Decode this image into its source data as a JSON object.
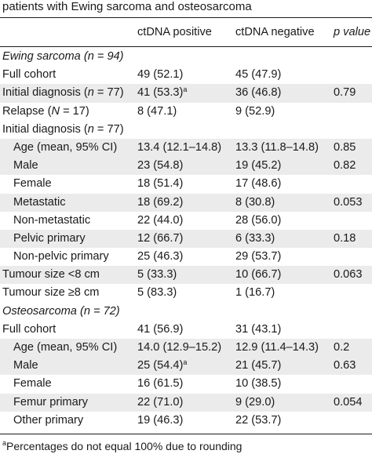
{
  "caption": "patients with Ewing sarcoma and osteosarcoma",
  "header": {
    "col1": "",
    "col2": "ctDNA positive",
    "col3": "ctDNA negative",
    "col4": "p value"
  },
  "rows": [
    {
      "label_pre": "Ewing sarcoma (",
      "label_var": "n",
      "label_post": " = 94)",
      "pos": "",
      "pos_sup": "",
      "neg": "",
      "p": ""
    },
    {
      "label_pre": "Full cohort",
      "label_var": "",
      "label_post": "",
      "pos": "49 (52.1)",
      "pos_sup": "",
      "neg": "45 (47.9)",
      "p": ""
    },
    {
      "label_pre": "Initial diagnosis (",
      "label_var": "n",
      "label_post": " = 77)",
      "pos": "41 (53.3)",
      "pos_sup": "a",
      "neg": "36 (46.8)",
      "p": "0.79"
    },
    {
      "label_pre": "Relapse (",
      "label_var": "N",
      "label_post": " = 17)",
      "pos": "8 (47.1)",
      "pos_sup": "",
      "neg": "9 (52.9)",
      "p": ""
    },
    {
      "label_pre": "Initial diagnosis (",
      "label_var": "n",
      "label_post": " = 77)",
      "pos": "",
      "pos_sup": "",
      "neg": "",
      "p": ""
    },
    {
      "label_pre": "Age (mean, 95% CI)",
      "label_var": "",
      "label_post": "",
      "pos": "13.4 (12.1–14.8)",
      "pos_sup": "",
      "neg": "13.3 (11.8–14.8)",
      "p": "0.85"
    },
    {
      "label_pre": "Male",
      "label_var": "",
      "label_post": "",
      "pos": "23 (54.8)",
      "pos_sup": "",
      "neg": "19 (45.2)",
      "p": "0.82"
    },
    {
      "label_pre": "Female",
      "label_var": "",
      "label_post": "",
      "pos": "18 (51.4)",
      "pos_sup": "",
      "neg": "17 (48.6)",
      "p": ""
    },
    {
      "label_pre": "Metastatic",
      "label_var": "",
      "label_post": "",
      "pos": "18 (69.2)",
      "pos_sup": "",
      "neg": "8 (30.8)",
      "p": "0.053"
    },
    {
      "label_pre": "Non-metastatic",
      "label_var": "",
      "label_post": "",
      "pos": "22 (44.0)",
      "pos_sup": "",
      "neg": "28 (56.0)",
      "p": ""
    },
    {
      "label_pre": "Pelvic primary",
      "label_var": "",
      "label_post": "",
      "pos": "12 (66.7)",
      "pos_sup": "",
      "neg": "6 (33.3)",
      "p": "0.18"
    },
    {
      "label_pre": "Non-pelvic primary",
      "label_var": "",
      "label_post": "",
      "pos": "25 (46.3)",
      "pos_sup": "",
      "neg": "29 (53.7)",
      "p": ""
    },
    {
      "label_pre": "Tumour size <8 cm",
      "label_var": "",
      "label_post": "",
      "pos": "5 (33.3)",
      "pos_sup": "",
      "neg": "10 (66.7)",
      "p": "0.063"
    },
    {
      "label_pre": "Tumour size ≥8 cm",
      "label_var": "",
      "label_post": "",
      "pos": "5 (83.3)",
      "pos_sup": "",
      "neg": "1 (16.7)",
      "p": ""
    },
    {
      "label_pre": "Osteosarcoma (",
      "label_var": "n",
      "label_post": " = 72)",
      "pos": "",
      "pos_sup": "",
      "neg": "",
      "p": ""
    },
    {
      "label_pre": "Full cohort",
      "label_var": "",
      "label_post": "",
      "pos": "41 (56.9)",
      "pos_sup": "",
      "neg": "31 (43.1)",
      "p": ""
    },
    {
      "label_pre": "Age (mean, 95% CI)",
      "label_var": "",
      "label_post": "",
      "pos": "14.0 (12.9–15.2)",
      "pos_sup": "",
      "neg": "12.9 (11.4–14.3)",
      "p": "0.2"
    },
    {
      "label_pre": "Male",
      "label_var": "",
      "label_post": "",
      "pos": "25 (54.4)",
      "pos_sup": "a",
      "neg": "21 (45.7)",
      "p": "0.63"
    },
    {
      "label_pre": "Female",
      "label_var": "",
      "label_post": "",
      "pos": "16 (61.5)",
      "pos_sup": "",
      "neg": "10 (38.5)",
      "p": ""
    },
    {
      "label_pre": "Femur primary",
      "label_var": "",
      "label_post": "",
      "pos": "22 (71.0)",
      "pos_sup": "",
      "neg": "9 (29.0)",
      "p": "0.054"
    },
    {
      "label_pre": "Other primary",
      "label_var": "",
      "label_post": "",
      "pos": "19 (46.3)",
      "pos_sup": "",
      "neg": "22 (53.7)",
      "p": ""
    }
  ],
  "footnote": {
    "mark": "a",
    "text": "Percentages do not equal 100% due to rounding"
  }
}
